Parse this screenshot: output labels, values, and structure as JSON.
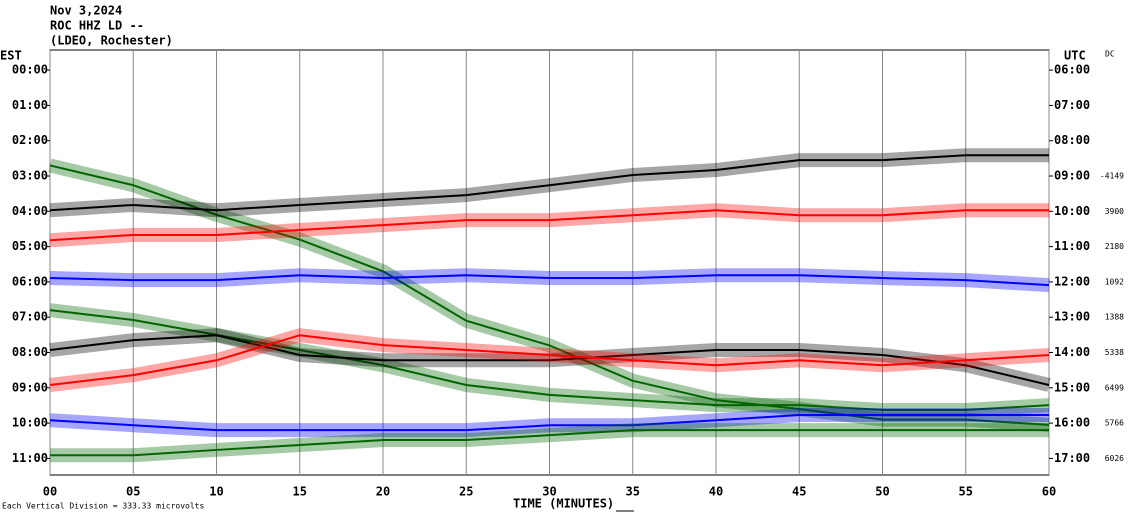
{
  "chart_data": {
    "type": "helicorder",
    "title_lines": [
      "Nov 3,2024",
      "ROC HHZ LD --",
      "(LDEO, Rochester)"
    ],
    "left_axis_label": "EST",
    "right_axis_label": "UTC",
    "dc_label": "DC",
    "xlabel": "TIME (MINUTES)",
    "footnote": "Each Vertical Division =  333.33 microvolts",
    "x": [
      0,
      5,
      10,
      15,
      20,
      25,
      30,
      35,
      40,
      45,
      50,
      55,
      60
    ],
    "xlim": [
      0,
      60
    ],
    "xticks": [
      {
        "value": 0,
        "label": "00"
      },
      {
        "value": 5,
        "label": "05"
      },
      10,
      15,
      20,
      25,
      30,
      35,
      40,
      45,
      50,
      55,
      60
    ],
    "ylim": [
      -0.57,
      11.47
    ],
    "yticks": [
      {
        "value": 0,
        "label": "00:00"
      },
      {
        "value": 1,
        "label": "01:00"
      },
      {
        "value": 2,
        "label": "02:00"
      },
      {
        "value": 3,
        "label": "03:00"
      },
      {
        "value": 4,
        "label": "04:00"
      },
      {
        "value": 5,
        "label": "05:00"
      },
      {
        "value": 6,
        "label": "06:00"
      },
      {
        "value": 7,
        "label": "07:00"
      },
      {
        "value": 8,
        "label": "08:00"
      },
      {
        "value": 9,
        "label": "09:00"
      },
      {
        "value": 10,
        "label": "10:00"
      },
      {
        "value": 11,
        "label": "11:00"
      }
    ],
    "y2lim": [
      5.43,
      17.47
    ],
    "y2ticks": [
      {
        "value": 6,
        "label": "06:00"
      },
      {
        "value": 7,
        "label": "07:00"
      },
      {
        "value": 8,
        "label": "08:00"
      },
      {
        "value": 9,
        "label": "09:00"
      },
      {
        "value": 10,
        "label": "10:00"
      },
      {
        "value": 11,
        "label": "11:00"
      },
      {
        "value": 12,
        "label": "12:00"
      },
      {
        "value": 13,
        "label": "13:00"
      },
      {
        "value": 14,
        "label": "14:00"
      },
      {
        "value": 15,
        "label": "15:00"
      },
      {
        "value": 16,
        "label": "16:00"
      },
      {
        "value": 17,
        "label": "17:00"
      }
    ],
    "grid": true,
    "series": [
      {
        "color": "#006400",
        "dc": -4149,
        "values": [
          2.7,
          3.26,
          4.1,
          4.8,
          5.7,
          7.1,
          7.8,
          8.8,
          9.35,
          9.6,
          9.9,
          9.9,
          10.05
        ]
      },
      {
        "color": "#000000",
        "dc": 3900,
        "values": [
          3.97,
          3.82,
          3.97,
          3.82,
          3.68,
          3.54,
          3.26,
          2.97,
          2.83,
          2.55,
          2.55,
          2.41,
          2.41
        ]
      },
      {
        "color": "#ff0000",
        "dc": 2180,
        "values": [
          4.82,
          4.67,
          4.67,
          4.53,
          4.39,
          4.25,
          4.25,
          4.11,
          3.97,
          4.11,
          4.11,
          3.97,
          3.97
        ]
      },
      {
        "color": "#0000ff",
        "dc": 1092,
        "values": [
          5.89,
          5.95,
          5.95,
          5.81,
          5.89,
          5.81,
          5.89,
          5.89,
          5.81,
          5.81,
          5.89,
          5.95,
          6.09
        ]
      },
      {
        "color": "#006400",
        "dc": 1388,
        "values": [
          6.8,
          7.08,
          7.5,
          7.93,
          8.36,
          8.92,
          9.2,
          9.35,
          9.49,
          9.49,
          9.63,
          9.63,
          9.49
        ]
      },
      {
        "color": "#000000",
        "dc": 5338,
        "values": [
          7.93,
          7.65,
          7.51,
          8.07,
          8.22,
          8.22,
          8.22,
          8.07,
          7.93,
          7.93,
          8.07,
          8.36,
          8.92
        ]
      },
      {
        "color": "#ff0000",
        "dc": 6499,
        "values": [
          8.92,
          8.64,
          8.22,
          7.51,
          7.79,
          7.93,
          8.07,
          8.22,
          8.36,
          8.22,
          8.36,
          8.22,
          8.07
        ]
      },
      {
        "color": "#0000ff",
        "dc": 5766,
        "values": [
          9.92,
          10.06,
          10.2,
          10.2,
          10.2,
          10.2,
          10.06,
          10.06,
          9.92,
          9.77,
          9.77,
          9.77,
          9.77
        ]
      },
      {
        "color": "#006400",
        "dc": 6026,
        "values": [
          10.91,
          10.91,
          10.76,
          10.62,
          10.48,
          10.48,
          10.34,
          10.2,
          10.2,
          10.2,
          10.2,
          10.2,
          10.2
        ]
      }
    ]
  }
}
